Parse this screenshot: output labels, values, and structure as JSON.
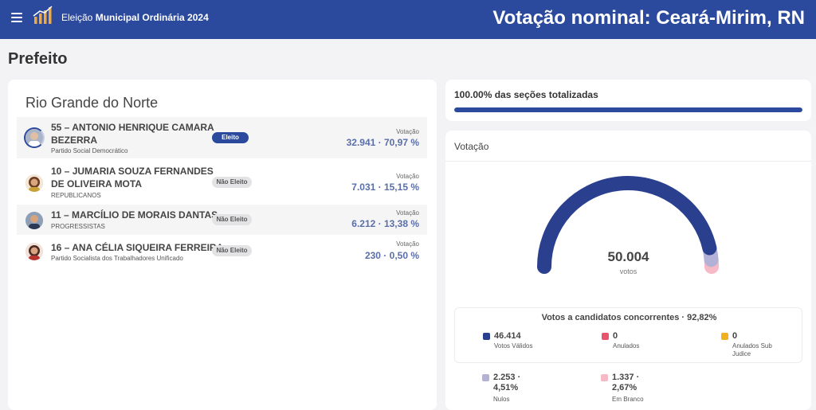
{
  "header": {
    "app_title_prefix": "Eleição",
    "app_title_bold": "Municipal Ordinária 2024",
    "page_heading": "Votação nominal: Ceará-Mirim, RN",
    "menu_icon": "menu-icon",
    "logo_icon": "bar-chart-icon"
  },
  "section_title": "Prefeito",
  "state_title": "Rio Grande do Norte",
  "vote_label": "Votação",
  "candidates": [
    {
      "name": "55 – ANTONIO HENRIQUE CAMARA BEZERRA",
      "party": "Partido Social Democrático",
      "status": "Eleito",
      "votes": "32.941 · 70,97 %"
    },
    {
      "name": "10 – JUMARIA SOUZA FERNANDES DE OLIVEIRA MOTA",
      "party": "REPUBLICANOS",
      "status": "Não Eleito",
      "votes": "7.031 · 15,15 %"
    },
    {
      "name": "11 – MARCÍLIO DE MORAIS DANTAS",
      "party": "PROGRESSISTAS",
      "status": "Não Eleito",
      "votes": "6.212 · 13,38 %"
    },
    {
      "name": "16 – ANA CÉLIA SIQUEIRA FERREIRA",
      "party": "Partido Socialista dos Trabalhadores Unificado",
      "status": "Não Eleito",
      "votes": "230 · 0,50 %"
    }
  ],
  "progress": {
    "text": "100.00% das seções totalizadas",
    "fraction": 1.0
  },
  "votes_card": {
    "title": "Votação",
    "total": "50.004",
    "unit": "votos",
    "legend_title": "Votos a candidatos concorrentes · 92,82%",
    "items": [
      {
        "value": "46.414",
        "label": "Votos Válidos",
        "color": "#2b3f8f",
        "count": 46414
      },
      {
        "value": "0",
        "label": "Anulados",
        "color": "#e8546c",
        "count": 0
      },
      {
        "value": "0",
        "label": "Anulados Sub Judice",
        "color": "#f2b021",
        "count": 0
      },
      {
        "value": "2.253 · 4,51%",
        "label": "Nulos",
        "color": "#b4b1d6",
        "count": 2253
      },
      {
        "value": "1.337 · 2,67%",
        "label": "Em Branco",
        "color": "#f6b9c6",
        "count": 1337
      }
    ]
  },
  "colors": {
    "header_bg": "#2b4a9e",
    "accent": "#2b4a9e",
    "vote_text": "#5a6fa8"
  }
}
